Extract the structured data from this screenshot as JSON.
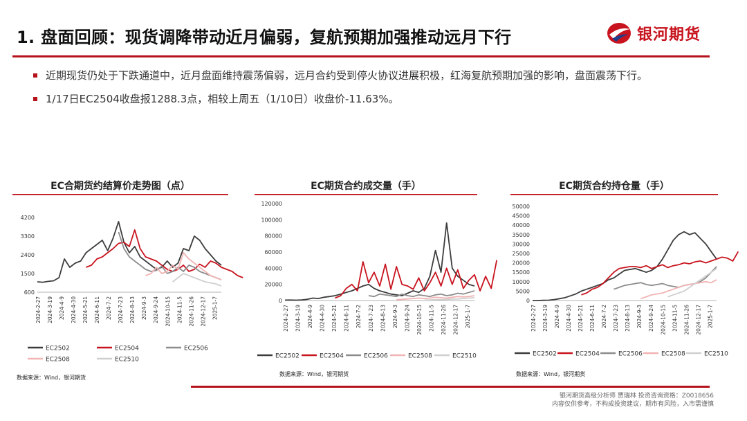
{
  "header": {
    "title": "1. 盘面回顾：现货调降带动近月偏弱，复航预期加强推动远月下行",
    "logo_text": "银河期货",
    "logo_icon": "galaxy-logo-icon"
  },
  "bullets": [
    "近期现货仍处于下跌通道中，近月盘面维持震荡偏弱，远月合约受到停火协议进展积极，红海复航预期加强的影响，盘面震荡下行。",
    "1/17日EC2504收盘报1288.3点，相较上周五（1/10日）收盘价-11.63%。"
  ],
  "colors": {
    "accent": "#b5121b",
    "EC2502": "#3c3c3c",
    "EC2504": "#c8141e",
    "EC2506": "#8c8c8c",
    "EC2508": "#f2b3b3",
    "EC2510": "#cfcfcf"
  },
  "chart_data": [
    {
      "type": "line",
      "title": "EC合期货约结算价走势图（点）",
      "x_ticks": [
        "2024-2-27",
        "2024-3-19",
        "2024-4-9",
        "2024-4-30",
        "2024-5-21",
        "2024-6-11",
        "2024-7-2",
        "2024-7-23",
        "2024-8-13",
        "2024-9-3",
        "2024-9-24",
        "2024-10-15",
        "2024-11-5",
        "2024-11-26",
        "2024-12-17",
        "2025-1-7"
      ],
      "y_ticks": [
        600,
        1500,
        2400,
        3300,
        4200
      ],
      "ylim": [
        600,
        4200
      ],
      "legend_position": "bottom",
      "series": [
        {
          "name": "EC2502",
          "start": 0,
          "values": [
            1100,
            1080,
            1120,
            1150,
            1300,
            2200,
            1800,
            2000,
            2100,
            2500,
            2700,
            2900,
            3100,
            2600,
            3200,
            4000,
            3000,
            2500,
            2800,
            2300,
            2100,
            1900,
            1700,
            1800,
            2100,
            1800,
            2000,
            2700,
            2600,
            3300,
            3100,
            2700,
            2400,
            2100,
            1900
          ]
        },
        {
          "name": "EC2504",
          "start": 9,
          "values": [
            1800,
            1900,
            2200,
            2300,
            2500,
            2700,
            2950,
            3000,
            2800,
            3600,
            2700,
            2300,
            2200,
            2100,
            1900,
            1700,
            1600,
            1700,
            1900,
            1600,
            1700,
            1950,
            1800,
            2100,
            2000,
            1800,
            1700,
            1600,
            1400,
            1300
          ]
        },
        {
          "name": "EC2506",
          "start": 15,
          "values": [
            3500,
            2700,
            2300,
            2100,
            1900,
            1700,
            1600,
            1650,
            1850,
            1500,
            1600,
            1800,
            1600,
            1900,
            1800,
            1600,
            1500,
            1400,
            1300,
            1200
          ]
        },
        {
          "name": "EC2508",
          "start": 20,
          "values": [
            1400,
            1500,
            1800,
            1500,
            1600,
            1900,
            1700,
            2500,
            2200,
            2000,
            1800,
            1600,
            1400,
            1300,
            1200
          ]
        },
        {
          "name": "EC2510",
          "start": 25,
          "values": [
            1100,
            1300,
            1500,
            1400,
            1300,
            1200,
            1100,
            1050,
            1000,
            900
          ]
        }
      ]
    },
    {
      "type": "line",
      "title": "EC期货合约成交量（手）",
      "x_ticks": [
        "2024-2-27",
        "2024-3-19",
        "2024-4-9",
        "2024-4-30",
        "2024-5-21",
        "2024-6-11",
        "2024-7-2",
        "2024-7-23",
        "2024-8-13",
        "2024-9-3",
        "2024-9-24",
        "2024-10-15",
        "2024-11-5",
        "2024-11-26",
        "2024-12-17",
        "2025-1-7"
      ],
      "y_ticks": [
        0,
        20000,
        40000,
        60000,
        80000,
        100000,
        120000
      ],
      "ylim": [
        0,
        120000
      ],
      "legend_position": "bottom",
      "series": [
        {
          "name": "EC2502",
          "start": 0,
          "values": [
            500,
            600,
            400,
            800,
            1500,
            3000,
            2500,
            4000,
            5000,
            6000,
            8000,
            10000,
            12000,
            15000,
            18000,
            20000,
            15000,
            12000,
            10000,
            8000,
            7000,
            6000,
            9000,
            12000,
            10000,
            15000,
            30000,
            62000,
            35000,
            96000,
            40000,
            30000,
            25000,
            20000,
            18000
          ]
        },
        {
          "name": "EC2504",
          "start": 9,
          "values": [
            3000,
            6000,
            15000,
            20000,
            12000,
            48000,
            22000,
            35000,
            18000,
            45000,
            14000,
            42000,
            20000,
            18000,
            14000,
            28000,
            12000,
            22000,
            35000,
            18000,
            40000,
            20000,
            38000,
            15000,
            25000,
            32000,
            12000,
            30000,
            15000,
            50000
          ]
        },
        {
          "name": "EC2506",
          "start": 15,
          "values": [
            6000,
            5000,
            8000,
            7000,
            6000,
            5000,
            8000,
            6000,
            5000,
            7000,
            6000,
            5000,
            7000,
            8000,
            6000,
            7000,
            9000,
            8000,
            10000,
            12000
          ]
        },
        {
          "name": "EC2508",
          "start": 20,
          "values": [
            1000,
            1500,
            2000,
            2500,
            3000,
            2500,
            3000,
            4000,
            3500,
            3000,
            4000,
            5000,
            4500,
            5000,
            6000
          ]
        },
        {
          "name": "EC2510",
          "start": 25,
          "values": [
            500,
            800,
            1000,
            1200,
            1500,
            1800,
            2000,
            2500,
            3000,
            3500
          ]
        }
      ]
    },
    {
      "type": "line",
      "title": "EC期货合约持仓量（手）",
      "x_ticks": [
        "2024-2-27",
        "2024-3-19",
        "2024-4-9",
        "2024-4-30",
        "2024-5-21",
        "2024-6-11",
        "2024-7-2",
        "2024-7-23",
        "2024-8-13",
        "2024-9-3",
        "2024-9-24",
        "2024-10-15",
        "2024-11-5",
        "2024-11-26",
        "2024-12-17",
        "2025-1-7"
      ],
      "y_ticks": [
        0,
        5000,
        10000,
        15000,
        20000,
        25000,
        30000,
        35000,
        40000,
        45000,
        50000
      ],
      "ylim": [
        0,
        50000
      ],
      "legend_position": "bottom",
      "series": [
        {
          "name": "EC2502",
          "start": 0,
          "values": [
            0,
            0,
            100,
            200,
            500,
            1000,
            1500,
            2500,
            3500,
            5000,
            6000,
            7000,
            8000,
            9000,
            11000,
            12000,
            14000,
            16000,
            16500,
            17000,
            16000,
            15000,
            16000,
            18000,
            22000,
            27000,
            32000,
            35000,
            36500,
            35000,
            36000,
            33000,
            30000,
            26000,
            22000
          ]
        },
        {
          "name": "EC2504",
          "start": 9,
          "values": [
            3000,
            4000,
            6000,
            7000,
            9000,
            12000,
            15000,
            17000,
            17500,
            18000,
            18000,
            17500,
            18500,
            17000,
            18000,
            19000,
            17500,
            18500,
            19000,
            20000,
            19500,
            20500,
            21000,
            20000,
            21000,
            22000,
            23000,
            22500,
            21000,
            26000
          ]
        },
        {
          "name": "EC2506",
          "start": 15,
          "values": [
            6000,
            7000,
            8000,
            8500,
            9000,
            9500,
            8500,
            8000,
            8500,
            9000,
            8000,
            7500,
            7000,
            8000,
            8500,
            9000,
            10000,
            12000,
            15000,
            18000
          ]
        },
        {
          "name": "EC2508",
          "start": 20,
          "values": [
            1000,
            2000,
            3000,
            3500,
            4000,
            5000,
            6000,
            7000,
            8000,
            8500,
            9000,
            9500,
            10000,
            9500,
            11000
          ]
        },
        {
          "name": "EC2510",
          "start": 25,
          "values": [
            2000,
            3000,
            4000,
            5000,
            7000,
            9000,
            11000,
            13000,
            15000,
            17000
          ]
        }
      ]
    }
  ],
  "legend_labels": [
    "EC2502",
    "EC2504",
    "EC2506",
    "EC2508",
    "EC2510"
  ],
  "sources": [
    "数据来源：Wind，银河期货",
    "数据来源：Wind，银河期货",
    "数据来源：Wind，银河期货"
  ],
  "footer": {
    "line1": "银河期货高级分析师 贾瑞林 投资咨询资格：Z0018656",
    "line2": "内容仅供参考，不构成投资建议，期市有风险，入市需谨慎"
  }
}
